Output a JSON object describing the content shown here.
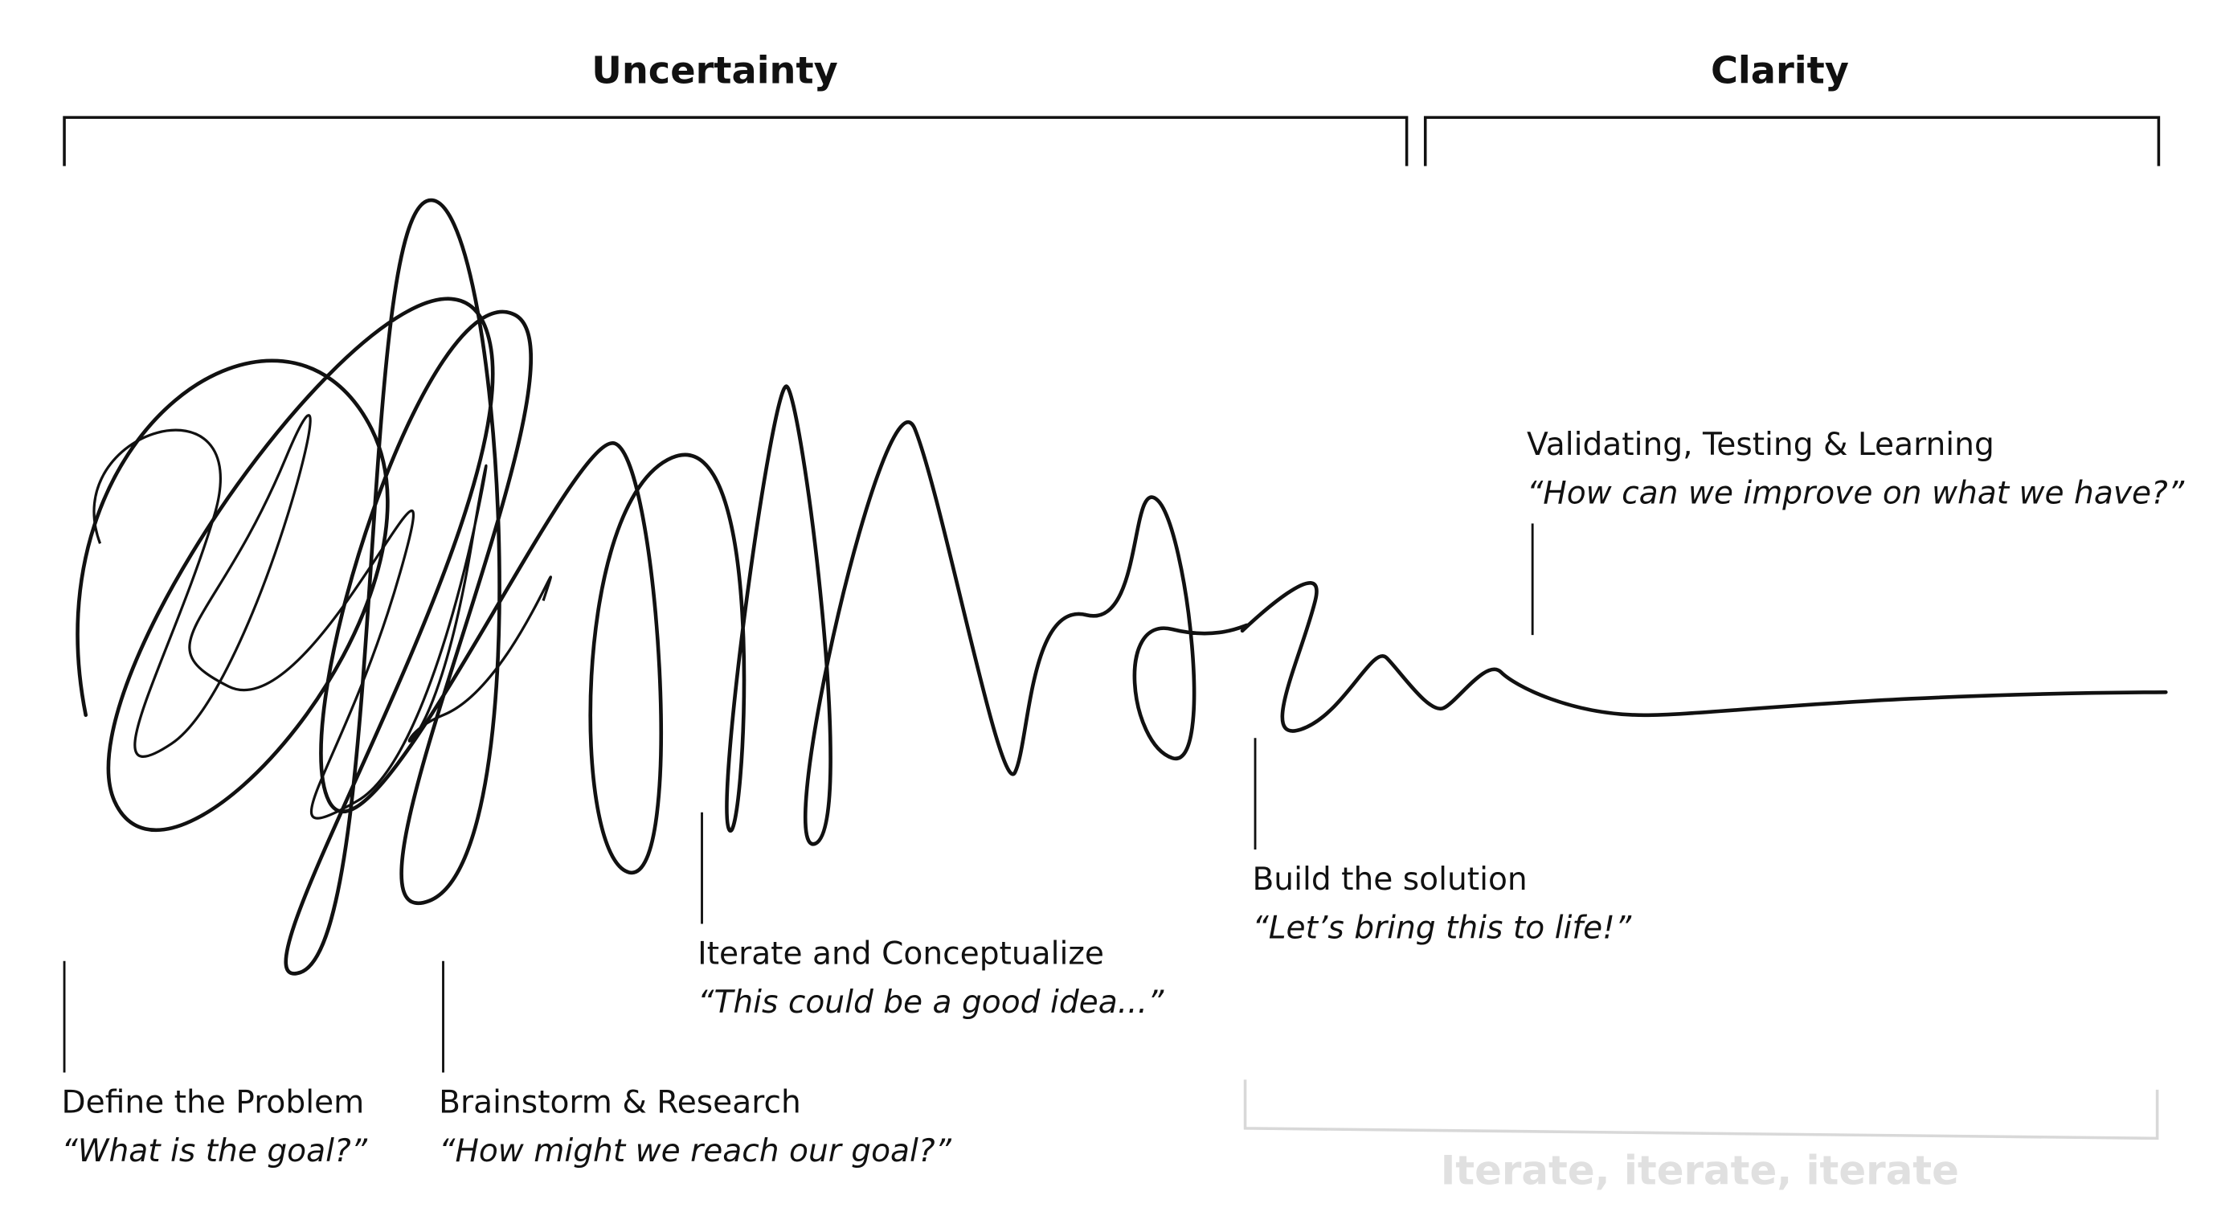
{
  "headers": {
    "uncertainty": "Uncertainty",
    "clarity": "Clarity"
  },
  "stages": [
    {
      "label": "Define the Problem",
      "quote": "“What is the goal?”"
    },
    {
      "label": "Brainstorm & Research",
      "quote": "“How might we reach our goal?”"
    },
    {
      "label": "Iterate and Conceptualize",
      "quote": "“This could be a good idea...”"
    },
    {
      "label": "Build the solution",
      "quote": "“Let’s bring this to life!”"
    },
    {
      "label": "Validating, Testing & Learning",
      "quote": "“How can we improve on what we have?”"
    }
  ],
  "footer": "Iterate, iterate, iterate"
}
